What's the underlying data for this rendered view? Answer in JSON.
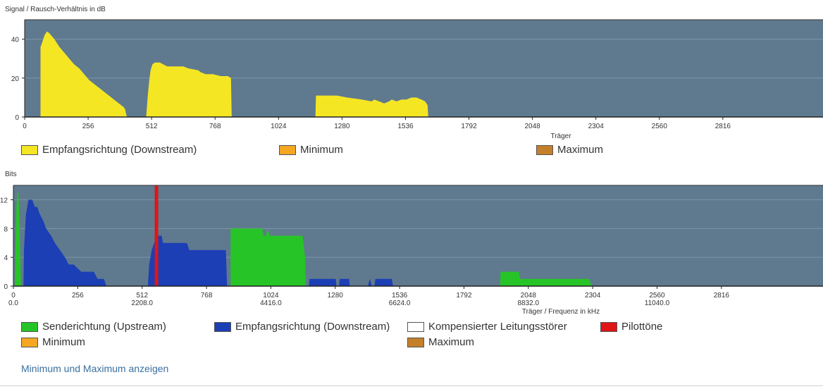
{
  "snr_chart": {
    "title": "Signal / Rausch-Verhältnis in dB",
    "xlabel": "Träger",
    "legend": [
      {
        "label": "Empfangsrichtung (Downstream)",
        "color": "#f5e623"
      },
      {
        "label": "Minimum",
        "color": "#f5a623"
      },
      {
        "label": "Maximum",
        "color": "#c47f2a"
      }
    ]
  },
  "bits_chart": {
    "title": "Bits",
    "xlabel": "Träger / Frequenz in kHz",
    "legend": [
      {
        "label": "Senderichtung (Upstream)",
        "color": "#27c427"
      },
      {
        "label": "Empfangsrichtung (Downstream)",
        "color": "#1c3fb5"
      },
      {
        "label": "Kompensierter Leitungsstörer",
        "color": "#ffffff"
      },
      {
        "label": "Pilottöne",
        "color": "#e01515"
      },
      {
        "label": "Minimum",
        "color": "#f5a623"
      },
      {
        "label": "Maximum",
        "color": "#c47f2a"
      }
    ]
  },
  "toggle_link": "Minimum und Maximum anzeigen",
  "chart_data": [
    {
      "type": "area",
      "title": "Signal / Rausch-Verhältnis in dB",
      "xlabel": "Träger",
      "ylabel": "",
      "xlim": [
        0,
        3220
      ],
      "ylim": [
        0,
        50
      ],
      "xticks": [
        0,
        256,
        512,
        768,
        1024,
        1280,
        1536,
        1792,
        2048,
        2304,
        2560,
        2816
      ],
      "yticks": [
        0,
        20,
        40
      ],
      "grid": true,
      "series": [
        {
          "name": "Empfangsrichtung (Downstream)",
          "color": "#f5e623",
          "segments": [
            [
              [
                64,
                0
              ],
              [
                64,
                36
              ],
              [
                70,
                38
              ],
              [
                80,
                42
              ],
              [
                90,
                44
              ],
              [
                100,
                43
              ],
              [
                120,
                40
              ],
              [
                140,
                36
              ],
              [
                160,
                33
              ],
              [
                180,
                30
              ],
              [
                200,
                27
              ],
              [
                220,
                25
              ],
              [
                240,
                22
              ],
              [
                260,
                19
              ],
              [
                280,
                17
              ],
              [
                300,
                15
              ],
              [
                320,
                13
              ],
              [
                340,
                11
              ],
              [
                360,
                9
              ],
              [
                380,
                7
              ],
              [
                390,
                6
              ],
              [
                400,
                5
              ],
              [
                405,
                4
              ],
              [
                410,
                1
              ],
              [
                414,
                0
              ]
            ],
            [
              [
                490,
                0
              ],
              [
                492,
                3
              ],
              [
                496,
                10
              ],
              [
                502,
                18
              ],
              [
                508,
                24
              ],
              [
                515,
                27
              ],
              [
                525,
                28
              ],
              [
                545,
                28
              ],
              [
                560,
                27
              ],
              [
                575,
                26
              ],
              [
                640,
                26
              ],
              [
                660,
                25
              ],
              [
                700,
                24
              ],
              [
                710,
                23
              ],
              [
                730,
                22
              ],
              [
                760,
                22
              ],
              [
                790,
                21
              ],
              [
                820,
                21
              ],
              [
                832,
                20
              ],
              [
                835,
                0
              ]
            ],
            [
              [
                1173,
                0
              ],
              [
                1175,
                11
              ],
              [
                1225,
                11
              ],
              [
                1260,
                11
              ],
              [
                1300,
                10
              ],
              [
                1360,
                9
              ],
              [
                1400,
                8
              ],
              [
                1410,
                9
              ],
              [
                1430,
                8
              ],
              [
                1450,
                7
              ],
              [
                1470,
                8
              ],
              [
                1480,
                9
              ],
              [
                1500,
                8
              ],
              [
                1520,
                9
              ],
              [
                1540,
                9
              ],
              [
                1560,
                10
              ],
              [
                1580,
                10
              ],
              [
                1600,
                9
              ],
              [
                1615,
                8
              ],
              [
                1625,
                6
              ],
              [
                1628,
                0
              ]
            ]
          ]
        }
      ]
    },
    {
      "type": "area",
      "title": "Bits",
      "xlabel": "Träger / Frequenz in kHz",
      "ylabel": "",
      "xlim": [
        0,
        3220
      ],
      "ylim": [
        0,
        14
      ],
      "xticks": [
        0,
        256,
        512,
        768,
        1024,
        1280,
        1536,
        1792,
        2048,
        2304,
        2560,
        2816
      ],
      "xticks_khz": [
        {
          "x": 0,
          "label": "0.0"
        },
        {
          "x": 512,
          "label": "2208.0"
        },
        {
          "x": 1024,
          "label": "4416.0"
        },
        {
          "x": 1536,
          "label": "6624.0"
        },
        {
          "x": 2048,
          "label": "8832.0"
        },
        {
          "x": 2560,
          "label": "11040.0"
        }
      ],
      "yticks": [
        0,
        4,
        8,
        12
      ],
      "grid": true,
      "series": [
        {
          "name": "Senderichtung (Upstream)",
          "color": "#27c427",
          "segments": [
            [
              [
                6,
                0
              ],
              [
                8,
                5
              ],
              [
                12,
                11
              ],
              [
                16,
                13
              ],
              [
                20,
                13
              ],
              [
                24,
                9
              ],
              [
                28,
                3
              ],
              [
                30,
                0
              ]
            ],
            [
              [
                864,
                0
              ],
              [
                864,
                8
              ],
              [
                990,
                8
              ],
              [
                995,
                7
              ],
              [
                1005,
                7
              ],
              [
                1010,
                8
              ],
              [
                1020,
                7
              ],
              [
                1150,
                7
              ],
              [
                1160,
                4
              ],
              [
                1163,
                0
              ]
            ],
            [
              [
                1935,
                0
              ],
              [
                1938,
                2
              ],
              [
                2010,
                2
              ],
              [
                2015,
                1
              ],
              [
                2290,
                1
              ],
              [
                2300,
                0
              ]
            ]
          ]
        },
        {
          "name": "Empfangsrichtung (Downstream)",
          "color": "#1c3fb5",
          "segments": [
            [
              [
                40,
                0
              ],
              [
                42,
                5
              ],
              [
                50,
                10
              ],
              [
                60,
                12
              ],
              [
                75,
                12
              ],
              [
                85,
                11
              ],
              [
                95,
                11
              ],
              [
                105,
                10
              ],
              [
                120,
                9
              ],
              [
                130,
                8
              ],
              [
                150,
                7
              ],
              [
                165,
                6
              ],
              [
                185,
                5
              ],
              [
                205,
                4
              ],
              [
                220,
                3
              ],
              [
                240,
                3
              ],
              [
                270,
                2
              ],
              [
                320,
                2
              ],
              [
                335,
                1
              ],
              [
                360,
                1
              ],
              [
                370,
                0
              ]
            ],
            [
              [
                535,
                0
              ],
              [
                540,
                3
              ],
              [
                550,
                5
              ],
              [
                560,
                6
              ],
              [
                570,
                7
              ],
              [
                590,
                7
              ],
              [
                595,
                6
              ],
              [
                690,
                6
              ],
              [
                700,
                5
              ],
              [
                845,
                5
              ],
              [
                850,
                0
              ]
            ],
            [
              [
                1175,
                0
              ],
              [
                1178,
                1
              ],
              [
                1282,
                1
              ],
              [
                1285,
                0
              ]
            ],
            [
              [
                1295,
                0
              ],
              [
                1298,
                1
              ],
              [
                1335,
                1
              ],
              [
                1338,
                0
              ]
            ],
            [
              [
                1410,
                0
              ],
              [
                1418,
                1
              ],
              [
                1425,
                0
              ]
            ],
            [
              [
                1436,
                0
              ],
              [
                1440,
                1
              ],
              [
                1505,
                1
              ],
              [
                1510,
                0
              ]
            ]
          ]
        }
      ],
      "pilot_tones": [
        {
          "x": 569,
          "name": "Pilottöne",
          "color": "#e01515"
        }
      ]
    }
  ]
}
